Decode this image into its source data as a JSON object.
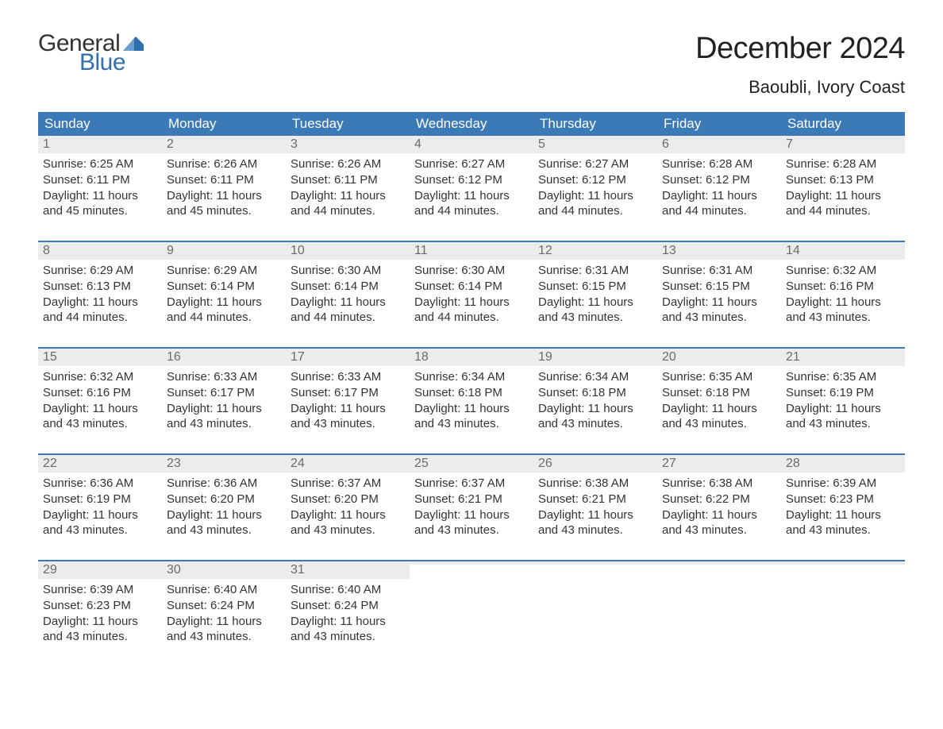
{
  "logo": {
    "word1": "General",
    "word2": "Blue",
    "word1_color": "#333333",
    "word2_color": "#2f6fad",
    "flag_color": "#2f6fad"
  },
  "title": "December 2024",
  "location": "Baoubli, Ivory Coast",
  "colors": {
    "header_bg": "#3b79b7",
    "header_text": "#ffffff",
    "daynum_bg": "#ececec",
    "daynum_text": "#6b6b6b",
    "body_text": "#333333",
    "week_border": "#3b79b7",
    "page_bg": "#ffffff"
  },
  "fonts": {
    "title_size_pt": 29,
    "location_size_pt": 17,
    "header_size_pt": 13,
    "daynum_size_pt": 12,
    "body_size_pt": 11
  },
  "day_headers": [
    "Sunday",
    "Monday",
    "Tuesday",
    "Wednesday",
    "Thursday",
    "Friday",
    "Saturday"
  ],
  "labels": {
    "sunrise": "Sunrise:",
    "sunset": "Sunset:",
    "daylight": "Daylight:"
  },
  "weeks": [
    [
      {
        "n": "1",
        "sr": "6:25 AM",
        "ss": "6:11 PM",
        "dl": "11 hours and 45 minutes."
      },
      {
        "n": "2",
        "sr": "6:26 AM",
        "ss": "6:11 PM",
        "dl": "11 hours and 45 minutes."
      },
      {
        "n": "3",
        "sr": "6:26 AM",
        "ss": "6:11 PM",
        "dl": "11 hours and 44 minutes."
      },
      {
        "n": "4",
        "sr": "6:27 AM",
        "ss": "6:12 PM",
        "dl": "11 hours and 44 minutes."
      },
      {
        "n": "5",
        "sr": "6:27 AM",
        "ss": "6:12 PM",
        "dl": "11 hours and 44 minutes."
      },
      {
        "n": "6",
        "sr": "6:28 AM",
        "ss": "6:12 PM",
        "dl": "11 hours and 44 minutes."
      },
      {
        "n": "7",
        "sr": "6:28 AM",
        "ss": "6:13 PM",
        "dl": "11 hours and 44 minutes."
      }
    ],
    [
      {
        "n": "8",
        "sr": "6:29 AM",
        "ss": "6:13 PM",
        "dl": "11 hours and 44 minutes."
      },
      {
        "n": "9",
        "sr": "6:29 AM",
        "ss": "6:14 PM",
        "dl": "11 hours and 44 minutes."
      },
      {
        "n": "10",
        "sr": "6:30 AM",
        "ss": "6:14 PM",
        "dl": "11 hours and 44 minutes."
      },
      {
        "n": "11",
        "sr": "6:30 AM",
        "ss": "6:14 PM",
        "dl": "11 hours and 44 minutes."
      },
      {
        "n": "12",
        "sr": "6:31 AM",
        "ss": "6:15 PM",
        "dl": "11 hours and 43 minutes."
      },
      {
        "n": "13",
        "sr": "6:31 AM",
        "ss": "6:15 PM",
        "dl": "11 hours and 43 minutes."
      },
      {
        "n": "14",
        "sr": "6:32 AM",
        "ss": "6:16 PM",
        "dl": "11 hours and 43 minutes."
      }
    ],
    [
      {
        "n": "15",
        "sr": "6:32 AM",
        "ss": "6:16 PM",
        "dl": "11 hours and 43 minutes."
      },
      {
        "n": "16",
        "sr": "6:33 AM",
        "ss": "6:17 PM",
        "dl": "11 hours and 43 minutes."
      },
      {
        "n": "17",
        "sr": "6:33 AM",
        "ss": "6:17 PM",
        "dl": "11 hours and 43 minutes."
      },
      {
        "n": "18",
        "sr": "6:34 AM",
        "ss": "6:18 PM",
        "dl": "11 hours and 43 minutes."
      },
      {
        "n": "19",
        "sr": "6:34 AM",
        "ss": "6:18 PM",
        "dl": "11 hours and 43 minutes."
      },
      {
        "n": "20",
        "sr": "6:35 AM",
        "ss": "6:18 PM",
        "dl": "11 hours and 43 minutes."
      },
      {
        "n": "21",
        "sr": "6:35 AM",
        "ss": "6:19 PM",
        "dl": "11 hours and 43 minutes."
      }
    ],
    [
      {
        "n": "22",
        "sr": "6:36 AM",
        "ss": "6:19 PM",
        "dl": "11 hours and 43 minutes."
      },
      {
        "n": "23",
        "sr": "6:36 AM",
        "ss": "6:20 PM",
        "dl": "11 hours and 43 minutes."
      },
      {
        "n": "24",
        "sr": "6:37 AM",
        "ss": "6:20 PM",
        "dl": "11 hours and 43 minutes."
      },
      {
        "n": "25",
        "sr": "6:37 AM",
        "ss": "6:21 PM",
        "dl": "11 hours and 43 minutes."
      },
      {
        "n": "26",
        "sr": "6:38 AM",
        "ss": "6:21 PM",
        "dl": "11 hours and 43 minutes."
      },
      {
        "n": "27",
        "sr": "6:38 AM",
        "ss": "6:22 PM",
        "dl": "11 hours and 43 minutes."
      },
      {
        "n": "28",
        "sr": "6:39 AM",
        "ss": "6:23 PM",
        "dl": "11 hours and 43 minutes."
      }
    ],
    [
      {
        "n": "29",
        "sr": "6:39 AM",
        "ss": "6:23 PM",
        "dl": "11 hours and 43 minutes."
      },
      {
        "n": "30",
        "sr": "6:40 AM",
        "ss": "6:24 PM",
        "dl": "11 hours and 43 minutes."
      },
      {
        "n": "31",
        "sr": "6:40 AM",
        "ss": "6:24 PM",
        "dl": "11 hours and 43 minutes."
      },
      null,
      null,
      null,
      null
    ]
  ]
}
